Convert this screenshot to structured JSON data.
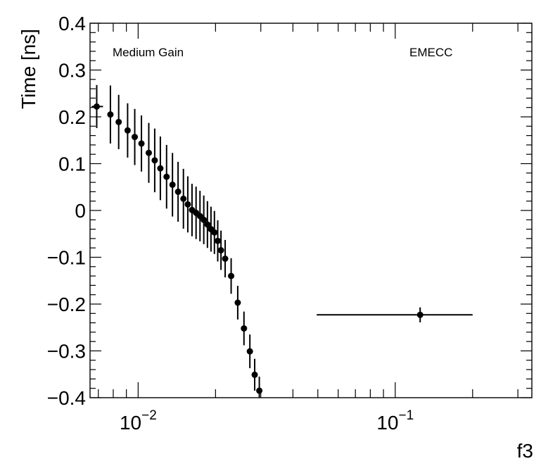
{
  "chart_data": {
    "type": "scatter",
    "title": "",
    "xlabel": "f3",
    "ylabel": "Time [ns]",
    "xscale": "log",
    "xlim": [
      0.0065,
      0.34
    ],
    "ylim": [
      -0.4,
      0.4
    ],
    "grid": false,
    "annotations": [
      {
        "name": "gain-label",
        "text": "Medium Gain"
      },
      {
        "name": "region-label",
        "text": "EMECC"
      }
    ],
    "yticks": [
      {
        "value": 0.4,
        "label": "0.4"
      },
      {
        "value": 0.3,
        "label": "0.3"
      },
      {
        "value": 0.2,
        "label": "0.2"
      },
      {
        "value": 0.1,
        "label": "0.1"
      },
      {
        "value": 0.0,
        "label": "0"
      },
      {
        "value": -0.1,
        "label": "−0.1"
      },
      {
        "value": -0.2,
        "label": "−0.2"
      },
      {
        "value": -0.3,
        "label": "−0.3"
      },
      {
        "value": -0.4,
        "label": "−0.4"
      }
    ],
    "xticks": [
      {
        "value": 0.01,
        "base": "10",
        "exp": "−2"
      },
      {
        "value": 0.1,
        "base": "10",
        "exp": "−1"
      }
    ],
    "series": [
      {
        "name": "EMECC Medium Gain",
        "points": [
          {
            "x": 0.0069,
            "xerr": [
              0.0066,
              0.0073
            ],
            "y": 0.222,
            "yerr": 0.046
          },
          {
            "x": 0.0078,
            "xerr": [
              0.0076,
              0.008
            ],
            "y": 0.205,
            "yerr": 0.062
          },
          {
            "x": 0.0084,
            "xerr": [
              0.0082,
              0.0086
            ],
            "y": 0.189,
            "yerr": 0.058
          },
          {
            "x": 0.0091,
            "xerr": [
              0.0089,
              0.0093
            ],
            "y": 0.171,
            "yerr": 0.058
          },
          {
            "x": 0.0097,
            "xerr": [
              0.0095,
              0.0099
            ],
            "y": 0.157,
            "yerr": 0.06
          },
          {
            "x": 0.0103,
            "xerr": [
              0.0101,
              0.0105
            ],
            "y": 0.143,
            "yerr": 0.06
          },
          {
            "x": 0.011,
            "xerr": [
              0.0108,
              0.0112
            ],
            "y": 0.123,
            "yerr": 0.064
          },
          {
            "x": 0.0116,
            "xerr": [
              0.0114,
              0.0118
            ],
            "y": 0.107,
            "yerr": 0.068
          },
          {
            "x": 0.0122,
            "xerr": [
              0.012,
              0.0124
            ],
            "y": 0.09,
            "yerr": 0.068
          },
          {
            "x": 0.0129,
            "xerr": [
              0.0127,
              0.0131
            ],
            "y": 0.072,
            "yerr": 0.068
          },
          {
            "x": 0.0136,
            "xerr": [
              0.0134,
              0.0138
            ],
            "y": 0.055,
            "yerr": 0.068
          },
          {
            "x": 0.0143,
            "xerr": [
              0.0141,
              0.0145
            ],
            "y": 0.04,
            "yerr": 0.064
          },
          {
            "x": 0.015,
            "xerr": [
              0.0148,
              0.0152
            ],
            "y": 0.025,
            "yerr": 0.064
          },
          {
            "x": 0.0156,
            "xerr": [
              0.0154,
              0.0158
            ],
            "y": 0.013,
            "yerr": 0.06
          },
          {
            "x": 0.0162,
            "xerr": [
              0.016,
              0.0164
            ],
            "y": 0.001,
            "yerr": 0.056
          },
          {
            "x": 0.0168,
            "xerr": [
              0.0166,
              0.017
            ],
            "y": -0.005,
            "yerr": 0.056
          },
          {
            "x": 0.0174,
            "xerr": [
              0.0172,
              0.0176
            ],
            "y": -0.012,
            "yerr": 0.054
          },
          {
            "x": 0.018,
            "xerr": [
              0.0178,
              0.0182
            ],
            "y": -0.02,
            "yerr": 0.052
          },
          {
            "x": 0.0186,
            "xerr": [
              0.0184,
              0.0188
            ],
            "y": -0.03,
            "yerr": 0.05
          },
          {
            "x": 0.0192,
            "xerr": [
              0.019,
              0.0194
            ],
            "y": -0.04,
            "yerr": 0.048
          },
          {
            "x": 0.0198,
            "xerr": [
              0.0196,
              0.02
            ],
            "y": -0.047,
            "yerr": 0.046
          },
          {
            "x": 0.0204,
            "xerr": [
              0.0202,
              0.0206
            ],
            "y": -0.065,
            "yerr": 0.044
          },
          {
            "x": 0.021,
            "xerr": [
              0.0208,
              0.0212
            ],
            "y": -0.085,
            "yerr": 0.042
          },
          {
            "x": 0.0218,
            "xerr": [
              0.0216,
              0.022
            ],
            "y": -0.103,
            "yerr": 0.04
          },
          {
            "x": 0.023,
            "xerr": [
              0.0228,
              0.0232
            ],
            "y": -0.14,
            "yerr": 0.038
          },
          {
            "x": 0.0244,
            "xerr": [
              0.0242,
              0.0246
            ],
            "y": -0.197,
            "yerr": 0.036
          },
          {
            "x": 0.0258,
            "xerr": [
              0.0256,
              0.026
            ],
            "y": -0.252,
            "yerr": 0.036
          },
          {
            "x": 0.0272,
            "xerr": [
              0.027,
              0.0274
            ],
            "y": -0.301,
            "yerr": 0.036
          },
          {
            "x": 0.0284,
            "xerr": [
              0.0282,
              0.0286
            ],
            "y": -0.351,
            "yerr": 0.034
          },
          {
            "x": 0.0296,
            "xerr": [
              0.0294,
              0.0298
            ],
            "y": -0.385,
            "yerr": 0.03
          },
          {
            "x": 0.125,
            "xerr": [
              0.0495,
              0.2
            ],
            "y": -0.223,
            "yerr": 0.016
          }
        ]
      }
    ]
  }
}
